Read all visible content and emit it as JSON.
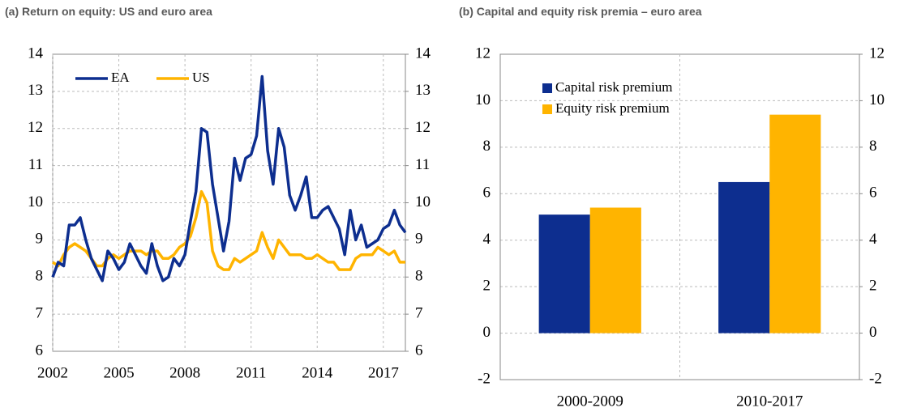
{
  "chart_data": [
    {
      "type": "line",
      "title": "(a) Return on equity: US and euro area",
      "x": [
        2002,
        2002.25,
        2002.5,
        2002.75,
        2003,
        2003.25,
        2003.5,
        2003.75,
        2004,
        2004.25,
        2004.5,
        2004.75,
        2005,
        2005.25,
        2005.5,
        2005.75,
        2006,
        2006.25,
        2006.5,
        2006.75,
        2007,
        2007.25,
        2007.5,
        2007.75,
        2008,
        2008.25,
        2008.5,
        2008.75,
        2009,
        2009.25,
        2009.5,
        2009.75,
        2010,
        2010.25,
        2010.5,
        2010.75,
        2011,
        2011.25,
        2011.5,
        2011.75,
        2012,
        2012.25,
        2012.5,
        2012.75,
        2013,
        2013.25,
        2013.5,
        2013.75,
        2014,
        2014.25,
        2014.5,
        2014.75,
        2015,
        2015.25,
        2015.5,
        2015.75,
        2016,
        2016.25,
        2016.5,
        2016.75,
        2017,
        2017.25,
        2017.5,
        2017.75,
        2018
      ],
      "series": [
        {
          "name": "EA",
          "color": "#0d2e8f",
          "values": [
            8.0,
            8.4,
            8.3,
            9.4,
            9.4,
            9.6,
            9.0,
            8.5,
            8.2,
            7.9,
            8.7,
            8.5,
            8.2,
            8.4,
            8.9,
            8.6,
            8.3,
            8.1,
            8.9,
            8.3,
            7.9,
            8.0,
            8.5,
            8.3,
            8.6,
            9.5,
            10.3,
            12.0,
            11.9,
            10.5,
            9.6,
            8.7,
            9.5,
            11.2,
            10.6,
            11.2,
            11.3,
            11.8,
            13.4,
            11.4,
            10.5,
            12.0,
            11.5,
            10.2,
            9.8,
            10.2,
            10.7,
            9.6,
            9.6,
            9.8,
            9.9,
            9.6,
            9.3,
            8.6,
            9.8,
            9.0,
            9.4,
            8.8,
            8.9,
            9.0,
            9.3,
            9.4,
            9.8,
            9.4,
            9.2
          ]
        },
        {
          "name": "US",
          "color": "#ffb400",
          "values": [
            8.4,
            8.3,
            8.6,
            8.8,
            8.9,
            8.8,
            8.7,
            8.5,
            8.3,
            8.3,
            8.5,
            8.6,
            8.5,
            8.6,
            8.7,
            8.7,
            8.7,
            8.6,
            8.7,
            8.7,
            8.5,
            8.5,
            8.6,
            8.8,
            8.9,
            9.1,
            9.6,
            10.3,
            10.0,
            8.7,
            8.3,
            8.2,
            8.2,
            8.5,
            8.4,
            8.5,
            8.6,
            8.7,
            9.2,
            8.8,
            8.5,
            9.0,
            8.8,
            8.6,
            8.6,
            8.6,
            8.5,
            8.5,
            8.6,
            8.5,
            8.4,
            8.4,
            8.2,
            8.2,
            8.2,
            8.5,
            8.6,
            8.6,
            8.6,
            8.8,
            8.7,
            8.6,
            8.7,
            8.4,
            8.4
          ]
        }
      ],
      "xlim": [
        2002,
        2018
      ],
      "xticks": [
        2002,
        2005,
        2008,
        2011,
        2014,
        2017
      ],
      "ylim": [
        6,
        14
      ],
      "yticks": [
        6,
        7,
        8,
        9,
        10,
        11,
        12,
        13,
        14
      ],
      "y2lim": [
        6,
        14
      ],
      "y2ticks": [
        6,
        7,
        8,
        9,
        10,
        11,
        12,
        13,
        14
      ],
      "grid": true,
      "legend": "upper left"
    },
    {
      "type": "bar",
      "title": "(b) Capital and equity risk premia – euro area",
      "categories": [
        "2000-2009",
        "2010-2017"
      ],
      "series": [
        {
          "name": "Capital risk premium",
          "color": "#0d2e8f",
          "values": [
            5.1,
            6.5
          ]
        },
        {
          "name": "Equity risk premium",
          "color": "#ffb400",
          "values": [
            5.4,
            9.4
          ]
        }
      ],
      "ylim": [
        -2,
        12
      ],
      "yticks": [
        -2,
        0,
        2,
        4,
        6,
        8,
        10,
        12
      ],
      "y2lim": [
        -2,
        12
      ],
      "y2ticks": [
        -2,
        0,
        2,
        4,
        6,
        8,
        10,
        12
      ],
      "grid": true,
      "legend": "upper left"
    }
  ]
}
